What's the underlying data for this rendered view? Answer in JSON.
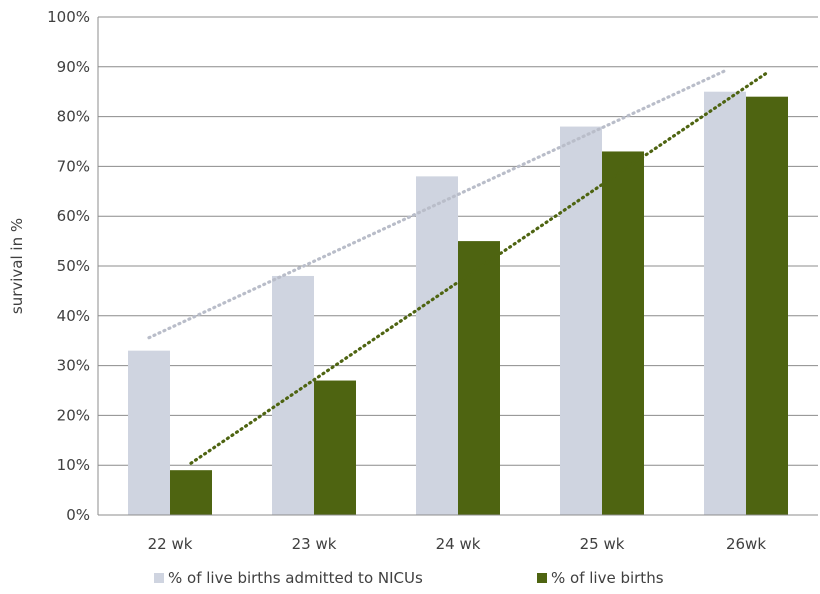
{
  "chart_data": {
    "type": "bar",
    "categories": [
      "22 wk",
      "23 wk",
      "24 wk",
      "25 wk",
      "26wk"
    ],
    "series": [
      {
        "name": "% of live births admitted to NICUs",
        "values": [
          33,
          48,
          68,
          78,
          85
        ],
        "color": "#cfd4e0"
      },
      {
        "name": "% of live births",
        "values": [
          9,
          27,
          55,
          73,
          84
        ],
        "color": "#4e6411"
      }
    ],
    "trendlines": [
      {
        "series": "% of live births admitted to NICUs",
        "type": "linear",
        "style": "dotted",
        "color": "#b9bdc9"
      },
      {
        "series": "% of live births",
        "type": "linear",
        "style": "dotted",
        "color": "#4e6411"
      }
    ],
    "ylabel": "survival in %",
    "ylim": [
      0,
      100
    ],
    "yticks": [
      "0%",
      "10%",
      "20%",
      "30%",
      "40%",
      "50%",
      "60%",
      "70%",
      "80%",
      "90%",
      "100%"
    ],
    "grid": true,
    "legend_position": "bottom"
  }
}
